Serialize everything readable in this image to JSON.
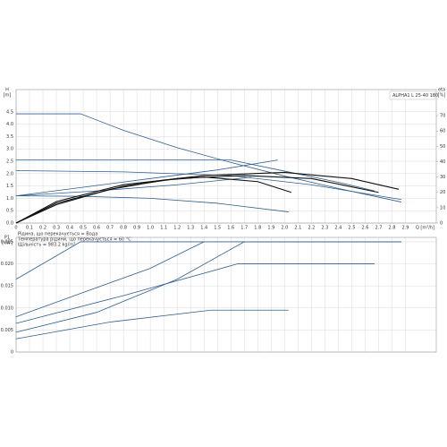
{
  "chart_data": [
    {
      "type": "line",
      "y_label": [
        "H",
        "[m]"
      ],
      "y2_label": [
        "eta",
        "[%]"
      ],
      "x_label": "Q [m³/h]",
      "legend": "ALPHA1 L 25-40 180",
      "notes": [
        "Рідина, що перекачується = Вода",
        "Температура рідини, що перекачується = 60 °C",
        "Щільність = 983.2 kg/m³"
      ],
      "xlim": [
        0,
        3.13
      ],
      "ylim": [
        0,
        5.4
      ],
      "y2lim": [
        0,
        87
      ],
      "xticks": [
        0,
        0.1,
        0.2,
        0.3,
        0.4,
        0.5,
        0.6,
        0.7,
        0.8,
        0.9,
        {
          "value": 1,
          "label": "1.0"
        },
        1.1,
        1.2,
        1.3,
        1.4,
        1.5,
        1.6,
        1.7,
        1.8,
        1.9,
        {
          "value": 2,
          "label": "2.0"
        },
        2.1,
        2.2,
        2.3,
        2.4,
        2.5,
        2.6,
        2.7,
        2.8,
        2.9
      ],
      "yticks": [
        {
          "value": 0,
          "label": "0.0"
        },
        0.5,
        {
          "value": 1,
          "label": "1.0"
        },
        1.5,
        {
          "value": 2,
          "label": "2.0"
        },
        2.5,
        {
          "value": 3,
          "label": "3.0"
        },
        3.5,
        {
          "value": 4,
          "label": "4.0"
        },
        4.5
      ],
      "y2ticks": [
        0,
        10,
        20,
        30,
        40,
        50,
        60,
        70
      ],
      "grid": true,
      "series": [
        {
          "color": "#2f5f8f",
          "x": [
            0,
            0.48,
            0.8,
            1.2,
            1.6,
            2.0,
            2.4,
            2.87
          ],
          "values": [
            4.42,
            4.42,
            3.75,
            3.05,
            2.45,
            1.9,
            1.4,
            0.85
          ]
        },
        {
          "color": "#2f5f8f",
          "x": [
            0,
            1.6,
            2.0,
            2.4,
            2.67
          ],
          "values": [
            2.55,
            2.55,
            2.1,
            1.65,
            1.3
          ]
        },
        {
          "color": "#2f5f8f",
          "x": [
            0,
            0.8,
            1.6,
            2.2,
            2.87
          ],
          "values": [
            2.12,
            2.07,
            1.92,
            1.55,
            0.95
          ]
        },
        {
          "color": "#2f5f8f",
          "x": [
            0,
            0.5,
            1.0,
            1.5,
            2.03
          ],
          "values": [
            1.1,
            1.08,
            1.0,
            0.8,
            0.45
          ]
        },
        {
          "color": "#2f5f8f",
          "x": [
            0,
            0.5,
            1.0,
            1.5,
            1.95
          ],
          "values": [
            1.1,
            1.45,
            1.8,
            2.15,
            2.55
          ]
        },
        {
          "color": "#2f5f8f",
          "x": [
            0,
            0.6,
            1.2,
            1.75
          ],
          "values": [
            1.1,
            1.3,
            1.55,
            1.85
          ]
        },
        {
          "color": "#111111",
          "axis": "y2",
          "x": [
            0,
            0.3,
            0.8,
            1.4,
            2.0,
            2.5,
            2.85
          ],
          "values": [
            0,
            14,
            25,
            31,
            33,
            29,
            22
          ]
        },
        {
          "color": "#111111",
          "axis": "y2",
          "x": [
            0,
            0.3,
            0.8,
            1.2,
            1.7,
            2.2,
            2.7
          ],
          "values": [
            0,
            13,
            24,
            29,
            31,
            29,
            20
          ]
        },
        {
          "color": "#111111",
          "axis": "y2",
          "x": [
            0,
            0.3,
            0.7,
            1.1,
            1.4,
            1.8,
            2.05
          ],
          "values": [
            0,
            12,
            22,
            28,
            30,
            27,
            20
          ]
        }
      ]
    },
    {
      "type": "line",
      "y_label": [
        "P1",
        "[kW]"
      ],
      "xlim": [
        0,
        3.13
      ],
      "ylim": [
        0,
        0.026
      ],
      "yticks": [
        0,
        0.005,
        {
          "value": 0.01,
          "label": "0.010"
        },
        0.015,
        {
          "value": 0.02,
          "label": "0.020"
        },
        0.025
      ],
      "grid": true,
      "series": [
        {
          "color": "#2f5f8f",
          "x": [
            0,
            0.48,
            2.87
          ],
          "values": [
            0.0165,
            0.025,
            0.025
          ]
        },
        {
          "color": "#2f5f8f",
          "x": [
            0,
            0.5,
            1.0,
            1.4
          ],
          "values": [
            0.008,
            0.0135,
            0.019,
            0.025
          ]
        },
        {
          "color": "#2f5f8f",
          "x": [
            0,
            0.8,
            1.65,
            2.67
          ],
          "values": [
            0.0065,
            0.0128,
            0.02,
            0.02
          ]
        },
        {
          "color": "#2f5f8f",
          "x": [
            0,
            0.6,
            1.2,
            1.7,
            2.87
          ],
          "values": [
            0.0045,
            0.009,
            0.0165,
            0.025,
            0.025
          ]
        },
        {
          "color": "#2f5f8f",
          "x": [
            0,
            0.7,
            1.45,
            2.03
          ],
          "values": [
            0.003,
            0.0068,
            0.0095,
            0.0095
          ]
        }
      ]
    }
  ]
}
